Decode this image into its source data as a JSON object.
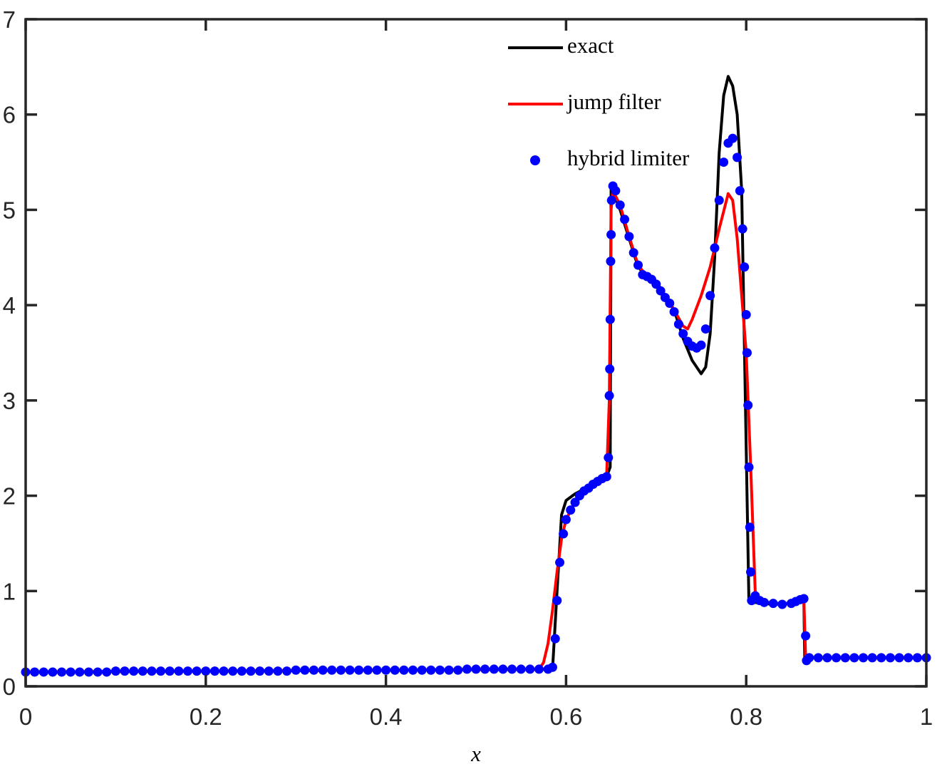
{
  "chart_data": {
    "type": "line",
    "x_label": "x",
    "xlim": [
      0,
      1
    ],
    "xticks": [
      0,
      0.2,
      0.4,
      0.6,
      0.8,
      1
    ],
    "ylim": [
      0,
      7
    ],
    "yticks": [
      0,
      1,
      2,
      3,
      4,
      5,
      6,
      7
    ],
    "grid": false,
    "legend": "top",
    "series": [
      {
        "name": "exact",
        "color": "#000000",
        "style": "line",
        "x": [
          0,
          0.585,
          0.59,
          0.595,
          0.6,
          0.61,
          0.62,
          0.645,
          0.649,
          0.65,
          0.66,
          0.67,
          0.68,
          0.69,
          0.7,
          0.71,
          0.72,
          0.73,
          0.74,
          0.745,
          0.75,
          0.755,
          0.76,
          0.765,
          0.77,
          0.775,
          0.78,
          0.785,
          0.79,
          0.795,
          0.8,
          0.803,
          0.81,
          0.83,
          0.85,
          0.864,
          0.865,
          1
        ],
        "values": [
          0.15,
          0.18,
          1.0,
          1.8,
          1.95,
          2.02,
          2.07,
          2.2,
          2.3,
          5.25,
          5.0,
          4.7,
          4.4,
          4.3,
          4.25,
          4.1,
          3.95,
          3.65,
          3.42,
          3.35,
          3.28,
          3.35,
          3.7,
          4.5,
          5.6,
          6.2,
          6.4,
          6.3,
          6.0,
          5.2,
          2.5,
          0.9,
          0.88,
          0.86,
          0.87,
          0.92,
          0.3,
          0.3
        ]
      },
      {
        "name": "jump filter",
        "color": "#ff0000",
        "style": "line",
        "x": [
          0,
          0.57,
          0.575,
          0.58,
          0.585,
          0.59,
          0.595,
          0.6,
          0.61,
          0.62,
          0.63,
          0.645,
          0.648,
          0.65,
          0.652,
          0.66,
          0.67,
          0.68,
          0.69,
          0.7,
          0.71,
          0.72,
          0.73,
          0.735,
          0.74,
          0.75,
          0.76,
          0.77,
          0.78,
          0.785,
          0.79,
          0.8,
          0.805,
          0.81,
          0.815,
          0.83,
          0.85,
          0.864,
          0.866,
          1
        ],
        "values": [
          0.15,
          0.18,
          0.25,
          0.45,
          0.8,
          1.2,
          1.55,
          1.75,
          1.93,
          2.03,
          2.1,
          2.2,
          3.0,
          5.0,
          5.2,
          5.05,
          4.72,
          4.42,
          4.3,
          4.22,
          4.1,
          3.95,
          3.78,
          3.75,
          3.85,
          4.1,
          4.4,
          4.8,
          5.17,
          5.1,
          4.7,
          3.5,
          2.3,
          1.0,
          0.9,
          0.87,
          0.87,
          0.92,
          0.3,
          0.3
        ]
      },
      {
        "name": "hybrid limiter",
        "color": "#0000ff",
        "style": "dots",
        "x": [
          0,
          0.01,
          0.02,
          0.03,
          0.04,
          0.05,
          0.06,
          0.07,
          0.08,
          0.09,
          0.1,
          0.11,
          0.12,
          0.13,
          0.14,
          0.15,
          0.16,
          0.17,
          0.18,
          0.19,
          0.2,
          0.21,
          0.22,
          0.23,
          0.24,
          0.25,
          0.26,
          0.27,
          0.28,
          0.29,
          0.3,
          0.31,
          0.32,
          0.33,
          0.34,
          0.35,
          0.36,
          0.37,
          0.38,
          0.39,
          0.4,
          0.41,
          0.42,
          0.43,
          0.44,
          0.45,
          0.46,
          0.47,
          0.48,
          0.49,
          0.5,
          0.51,
          0.52,
          0.53,
          0.54,
          0.55,
          0.56,
          0.57,
          0.58,
          0.585,
          0.588,
          0.59,
          0.593,
          0.597,
          0.6,
          0.605,
          0.61,
          0.615,
          0.62,
          0.625,
          0.63,
          0.635,
          0.64,
          0.645,
          0.647,
          0.648,
          0.6485,
          0.649,
          0.6495,
          0.65,
          0.6505,
          0.652,
          0.655,
          0.66,
          0.665,
          0.67,
          0.675,
          0.68,
          0.685,
          0.69,
          0.695,
          0.7,
          0.705,
          0.71,
          0.715,
          0.72,
          0.725,
          0.73,
          0.735,
          0.74,
          0.745,
          0.75,
          0.755,
          0.76,
          0.765,
          0.77,
          0.775,
          0.78,
          0.785,
          0.79,
          0.793,
          0.796,
          0.798,
          0.8,
          0.801,
          0.802,
          0.803,
          0.804,
          0.805,
          0.806,
          0.81,
          0.815,
          0.82,
          0.83,
          0.84,
          0.85,
          0.855,
          0.86,
          0.864,
          0.866,
          0.867,
          0.87,
          0.88,
          0.89,
          0.9,
          0.91,
          0.92,
          0.93,
          0.94,
          0.95,
          0.96,
          0.97,
          0.98,
          0.99,
          1
        ],
        "values": [
          0.15,
          0.15,
          0.15,
          0.15,
          0.15,
          0.15,
          0.15,
          0.15,
          0.15,
          0.15,
          0.16,
          0.16,
          0.16,
          0.16,
          0.16,
          0.16,
          0.16,
          0.16,
          0.16,
          0.16,
          0.16,
          0.16,
          0.16,
          0.16,
          0.16,
          0.16,
          0.16,
          0.16,
          0.16,
          0.16,
          0.17,
          0.17,
          0.17,
          0.17,
          0.17,
          0.17,
          0.17,
          0.17,
          0.17,
          0.17,
          0.17,
          0.17,
          0.17,
          0.17,
          0.17,
          0.17,
          0.17,
          0.17,
          0.17,
          0.18,
          0.18,
          0.18,
          0.18,
          0.18,
          0.18,
          0.18,
          0.18,
          0.18,
          0.18,
          0.2,
          0.5,
          0.9,
          1.3,
          1.6,
          1.75,
          1.85,
          1.93,
          2.0,
          2.05,
          2.08,
          2.12,
          2.15,
          2.18,
          2.2,
          2.4,
          3.05,
          3.33,
          3.85,
          4.46,
          4.74,
          5.1,
          5.25,
          5.2,
          5.05,
          4.9,
          4.72,
          4.55,
          4.42,
          4.32,
          4.3,
          4.27,
          4.22,
          4.15,
          4.08,
          4.02,
          3.93,
          3.8,
          3.7,
          3.62,
          3.57,
          3.55,
          3.58,
          3.75,
          4.1,
          4.6,
          5.1,
          5.5,
          5.7,
          5.75,
          5.55,
          5.2,
          4.8,
          4.4,
          3.9,
          3.5,
          2.95,
          2.3,
          1.67,
          1.2,
          0.9,
          0.95,
          0.9,
          0.88,
          0.87,
          0.86,
          0.87,
          0.89,
          0.91,
          0.92,
          0.53,
          0.27,
          0.3,
          0.3,
          0.3,
          0.3,
          0.3,
          0.3,
          0.3,
          0.3,
          0.3,
          0.3,
          0.3,
          0.3,
          0.3,
          0.3
        ]
      }
    ]
  }
}
